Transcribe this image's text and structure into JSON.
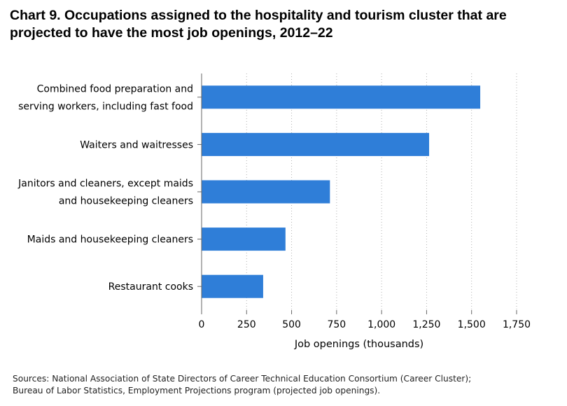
{
  "title_lines": [
    "Chart 9. Occupations assigned to the hospitality and tourism cluster that are",
    "projected to have the most job openings, 2012–22"
  ],
  "source_lines": [
    "Sources: National Association of State Directors of Career Technical Education Consortium (Career Cluster);",
    "Bureau of Labor Statistics, Employment Projections program (projected job openings)."
  ],
  "colors": {
    "bar": "#2f7ed8",
    "grid": "#b0b0b0",
    "axis": "#666666"
  },
  "chart_data": {
    "type": "bar",
    "orientation": "horizontal",
    "title": "Chart 9. Occupations assigned to the hospitality and tourism cluster that are projected to have the most job openings, 2012–22",
    "categories": [
      [
        "Combined food preparation and",
        "serving workers, including fast food"
      ],
      [
        "Waiters and waitresses"
      ],
      [
        "Janitors and cleaners, except maids",
        "and housekeeping cleaners"
      ],
      [
        "Maids and housekeeping cleaners"
      ],
      [
        "Restaurant cooks"
      ]
    ],
    "values": [
      1548,
      1264,
      713,
      466,
      342
    ],
    "xlabel": "Job openings (thousands)",
    "ylabel": "",
    "xlim": [
      0,
      1750
    ],
    "xticks": [
      0,
      250,
      500,
      750,
      1000,
      1250,
      1500,
      1750
    ],
    "xtick_labels": [
      "0",
      "250",
      "500",
      "750",
      "1,000",
      "1,250",
      "1,500",
      "1,750"
    ],
    "grid": "vertical dotted"
  }
}
